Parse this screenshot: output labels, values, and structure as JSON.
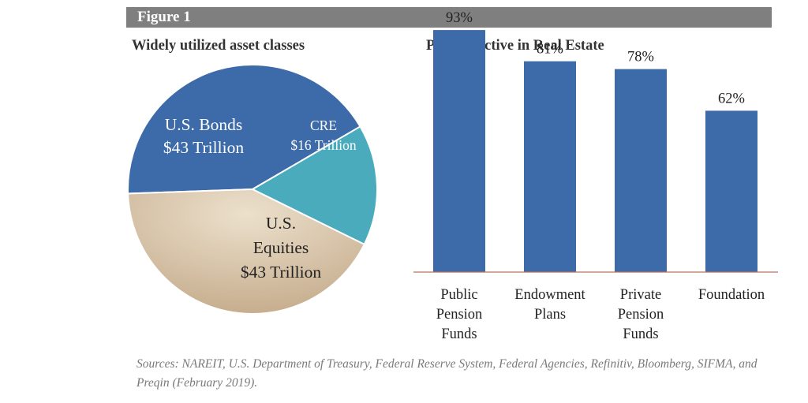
{
  "figure_label": "Figure 1",
  "source_note": "Sources: NAREIT, U.S. Department of Treasury, Federal Reserve System, Federal Agencies, Refinitiv, Bloomberg, SIFMA, and Preqin (February 2019).",
  "colors": {
    "banner": "#7f7f7f",
    "bonds": "#3d6aa8",
    "cre": "#4aabbd",
    "equities": "#d8c3a5",
    "bar": "#3d6aa8",
    "axis": "#b87560"
  },
  "chart_data": [
    {
      "type": "pie",
      "title": "Widely utilized asset classes",
      "slices": [
        {
          "label_lines": [
            "U.S. Bonds",
            "$43 Trillion"
          ],
          "value": 43,
          "color": "#3d6aa8"
        },
        {
          "label_lines": [
            "CRE",
            "$16 Trillion"
          ],
          "value": 16,
          "color": "#4aabbd"
        },
        {
          "label_lines": [
            "U.S.",
            "Equities",
            "$43 Trillion"
          ],
          "value": 43,
          "color": "#d8c3a5"
        }
      ]
    },
    {
      "type": "bar",
      "title": "Percent active in Real Estate",
      "categories": [
        [
          "Public",
          "Pension",
          "Funds"
        ],
        [
          "Endowment",
          "Plans"
        ],
        [
          "Private",
          "Pension",
          "Funds"
        ],
        [
          "Foundation"
        ]
      ],
      "values": [
        93,
        81,
        78,
        62
      ],
      "value_labels": [
        "93%",
        "81%",
        "78%",
        "62%"
      ],
      "ylim": [
        0,
        100
      ]
    }
  ]
}
